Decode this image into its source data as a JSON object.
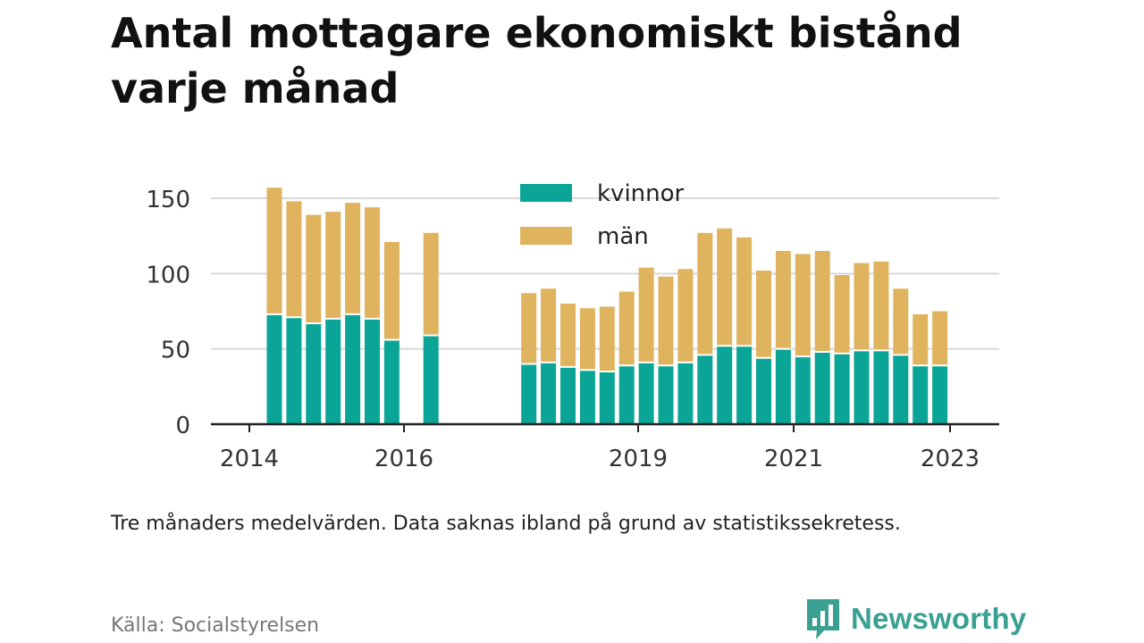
{
  "title": "Antal mottagare ekonomiskt bistånd varje månad",
  "note": "Tre månaders medelvärden. Data saknas ibland på grund av statistikssekretess.",
  "source": "Källa: Socialstyrelsen",
  "brand": "Newsworthy",
  "colors": {
    "kvinnor": "#0aa596",
    "man": "#e0b35e",
    "grid": "#d9d9d9",
    "axis": "#222222",
    "brand": "#3aa092"
  },
  "chart_data": {
    "type": "bar",
    "stacked": true,
    "x_ticks": [
      "2014",
      "2016",
      "2019",
      "2021",
      "2023"
    ],
    "y_ticks": [
      0,
      50,
      100,
      150
    ],
    "ylim": [
      0,
      160
    ],
    "legend": {
      "position": "top-center",
      "entries": [
        "kvinnor",
        "män"
      ]
    },
    "grid": true,
    "series": [
      {
        "name": "kvinnor",
        "values": [
          73,
          71,
          67,
          70,
          73,
          70,
          56,
          null,
          59,
          null,
          null,
          null,
          null,
          40,
          41,
          38,
          36,
          35,
          39,
          41,
          39,
          41,
          46,
          52,
          52,
          44,
          50,
          45,
          48,
          47,
          49,
          49,
          46,
          39,
          39
        ]
      },
      {
        "name": "män",
        "values": [
          84,
          77,
          72,
          71,
          74,
          74,
          65,
          null,
          68,
          null,
          null,
          null,
          null,
          47,
          49,
          42,
          41,
          43,
          49,
          63,
          59,
          62,
          81,
          78,
          72,
          58,
          65,
          68,
          67,
          52,
          58,
          59,
          44,
          34,
          36
        ]
      }
    ]
  }
}
